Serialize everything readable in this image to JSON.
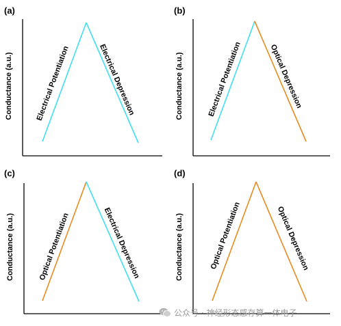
{
  "panels": [
    {
      "id": "a",
      "label": "(a)",
      "ylabel": "Conductance (a.u.)",
      "left": {
        "text": "Electrical Potentiation",
        "kind": "electrical"
      },
      "right": {
        "text": "Electrical Depression",
        "kind": "electrical"
      }
    },
    {
      "id": "b",
      "label": "(b)",
      "ylabel": "Conductance (a.u.)",
      "left": {
        "text": "Electrical Potentiation",
        "kind": "electrical"
      },
      "right": {
        "text": "Optical Depression",
        "kind": "optical"
      }
    },
    {
      "id": "c",
      "label": "(c)",
      "ylabel": "Conductance (a.u.)",
      "left": {
        "text": "Optical Potentiation",
        "kind": "optical"
      },
      "right": {
        "text": "Electrical Depression",
        "kind": "electrical"
      }
    },
    {
      "id": "d",
      "label": "(d)",
      "ylabel": "Conductance (a.u.)",
      "left": {
        "text": "Optical Potentiation",
        "kind": "optical"
      },
      "right": {
        "text": "Optical Depression",
        "kind": "optical"
      }
    }
  ],
  "colors": {
    "electrical": "#3fdff0",
    "optical": "#e88a1c",
    "axis": "#000000"
  },
  "watermark": {
    "text": "公众号 · 神经形态感存算一体电子",
    "icon": "wechat-icon"
  }
}
